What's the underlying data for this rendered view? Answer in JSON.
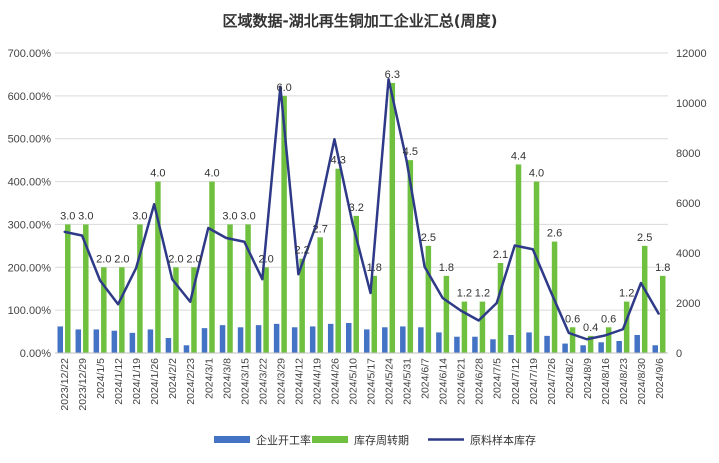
{
  "chart_data": {
    "type": "bar",
    "title": "区域数据-湖北再生铜加工企业汇总(周度)",
    "categories": [
      "2023/12/22",
      "2023/12/29",
      "2024/1/5",
      "2024/1/12",
      "2024/1/19",
      "2024/1/26",
      "2024/2/2",
      "2024/2/23",
      "2024/3/1",
      "2024/3/8",
      "2024/3/15",
      "2024/3/22",
      "2024/3/29",
      "2024/4/12",
      "2024/4/19",
      "2024/4/26",
      "2024/5/10",
      "2024/5/17",
      "2024/5/24",
      "2024/5/31",
      "2024/6/7",
      "2024/6/14",
      "2024/6/21",
      "2024/6/28",
      "2024/7/5",
      "2024/7/12",
      "2024/7/19",
      "2024/7/26",
      "2024/8/2",
      "2024/8/9",
      "2024/8/16",
      "2024/8/23",
      "2024/8/30",
      "2024/9/6"
    ],
    "left_axis": {
      "ticks": [
        "0.00%",
        "100.00%",
        "200.00%",
        "300.00%",
        "400.00%",
        "500.00%",
        "600.00%",
        "700.00%"
      ],
      "range": [
        0,
        7
      ]
    },
    "right_axis": {
      "ticks": [
        "0",
        "2000",
        "4000",
        "6000",
        "8000",
        "10000",
        "12000"
      ],
      "range": [
        0,
        12000
      ]
    },
    "series": [
      {
        "name": "企业开工率",
        "type": "bar",
        "axis": "left",
        "color": "#4472C4",
        "values": [
          0.62,
          0.55,
          0.55,
          0.52,
          0.47,
          0.55,
          0.35,
          0.18,
          0.58,
          0.65,
          0.6,
          0.65,
          0.68,
          0.6,
          0.62,
          0.68,
          0.7,
          0.55,
          0.6,
          0.62,
          0.6,
          0.48,
          0.38,
          0.38,
          0.32,
          0.42,
          0.48,
          0.4,
          0.22,
          0.18,
          0.25,
          0.28,
          0.42,
          0.18
        ]
      },
      {
        "name": "库存周转期",
        "type": "bar",
        "axis": "left",
        "color": "#70C040",
        "values": [
          3.0,
          3.0,
          2.0,
          2.0,
          3.0,
          4.0,
          2.0,
          2.0,
          4.0,
          3.0,
          3.0,
          2.0,
          6.0,
          2.2,
          2.7,
          4.3,
          3.2,
          1.8,
          6.3,
          4.5,
          2.5,
          1.8,
          1.2,
          1.2,
          2.1,
          4.4,
          4.0,
          2.6,
          0.6,
          0.4,
          0.6,
          1.2,
          2.5,
          1.8
        ],
        "labels": [
          "3.0",
          "3.0",
          "2.0",
          "2.0",
          "3.0",
          "4.0",
          "2.0",
          "2.0",
          "4.0",
          "3.0",
          "3.0",
          "2.0",
          "6.0",
          "2.2",
          "2.7",
          "4.3",
          "3.2",
          "1.8",
          "6.3",
          "4.5",
          "2.5",
          "1.8",
          "1.2",
          "1.2",
          "2.1",
          "4.4",
          "4.0",
          "2.6",
          "0.6",
          "0.4",
          "0.6",
          "1.2",
          "2.5",
          "1.8"
        ]
      },
      {
        "name": "原料样本库存",
        "type": "line",
        "axis": "right",
        "color": "#2E3A87",
        "values": [
          4850,
          4700,
          2900,
          1950,
          3400,
          5950,
          2950,
          2050,
          5000,
          4600,
          4450,
          2950,
          10650,
          3150,
          5150,
          8550,
          5200,
          2400,
          10950,
          7700,
          3450,
          2200,
          1700,
          1300,
          2000,
          4300,
          4150,
          2450,
          800,
          550,
          700,
          950,
          2800,
          1550
        ]
      }
    ],
    "legend_position": "bottom",
    "grid": true
  }
}
